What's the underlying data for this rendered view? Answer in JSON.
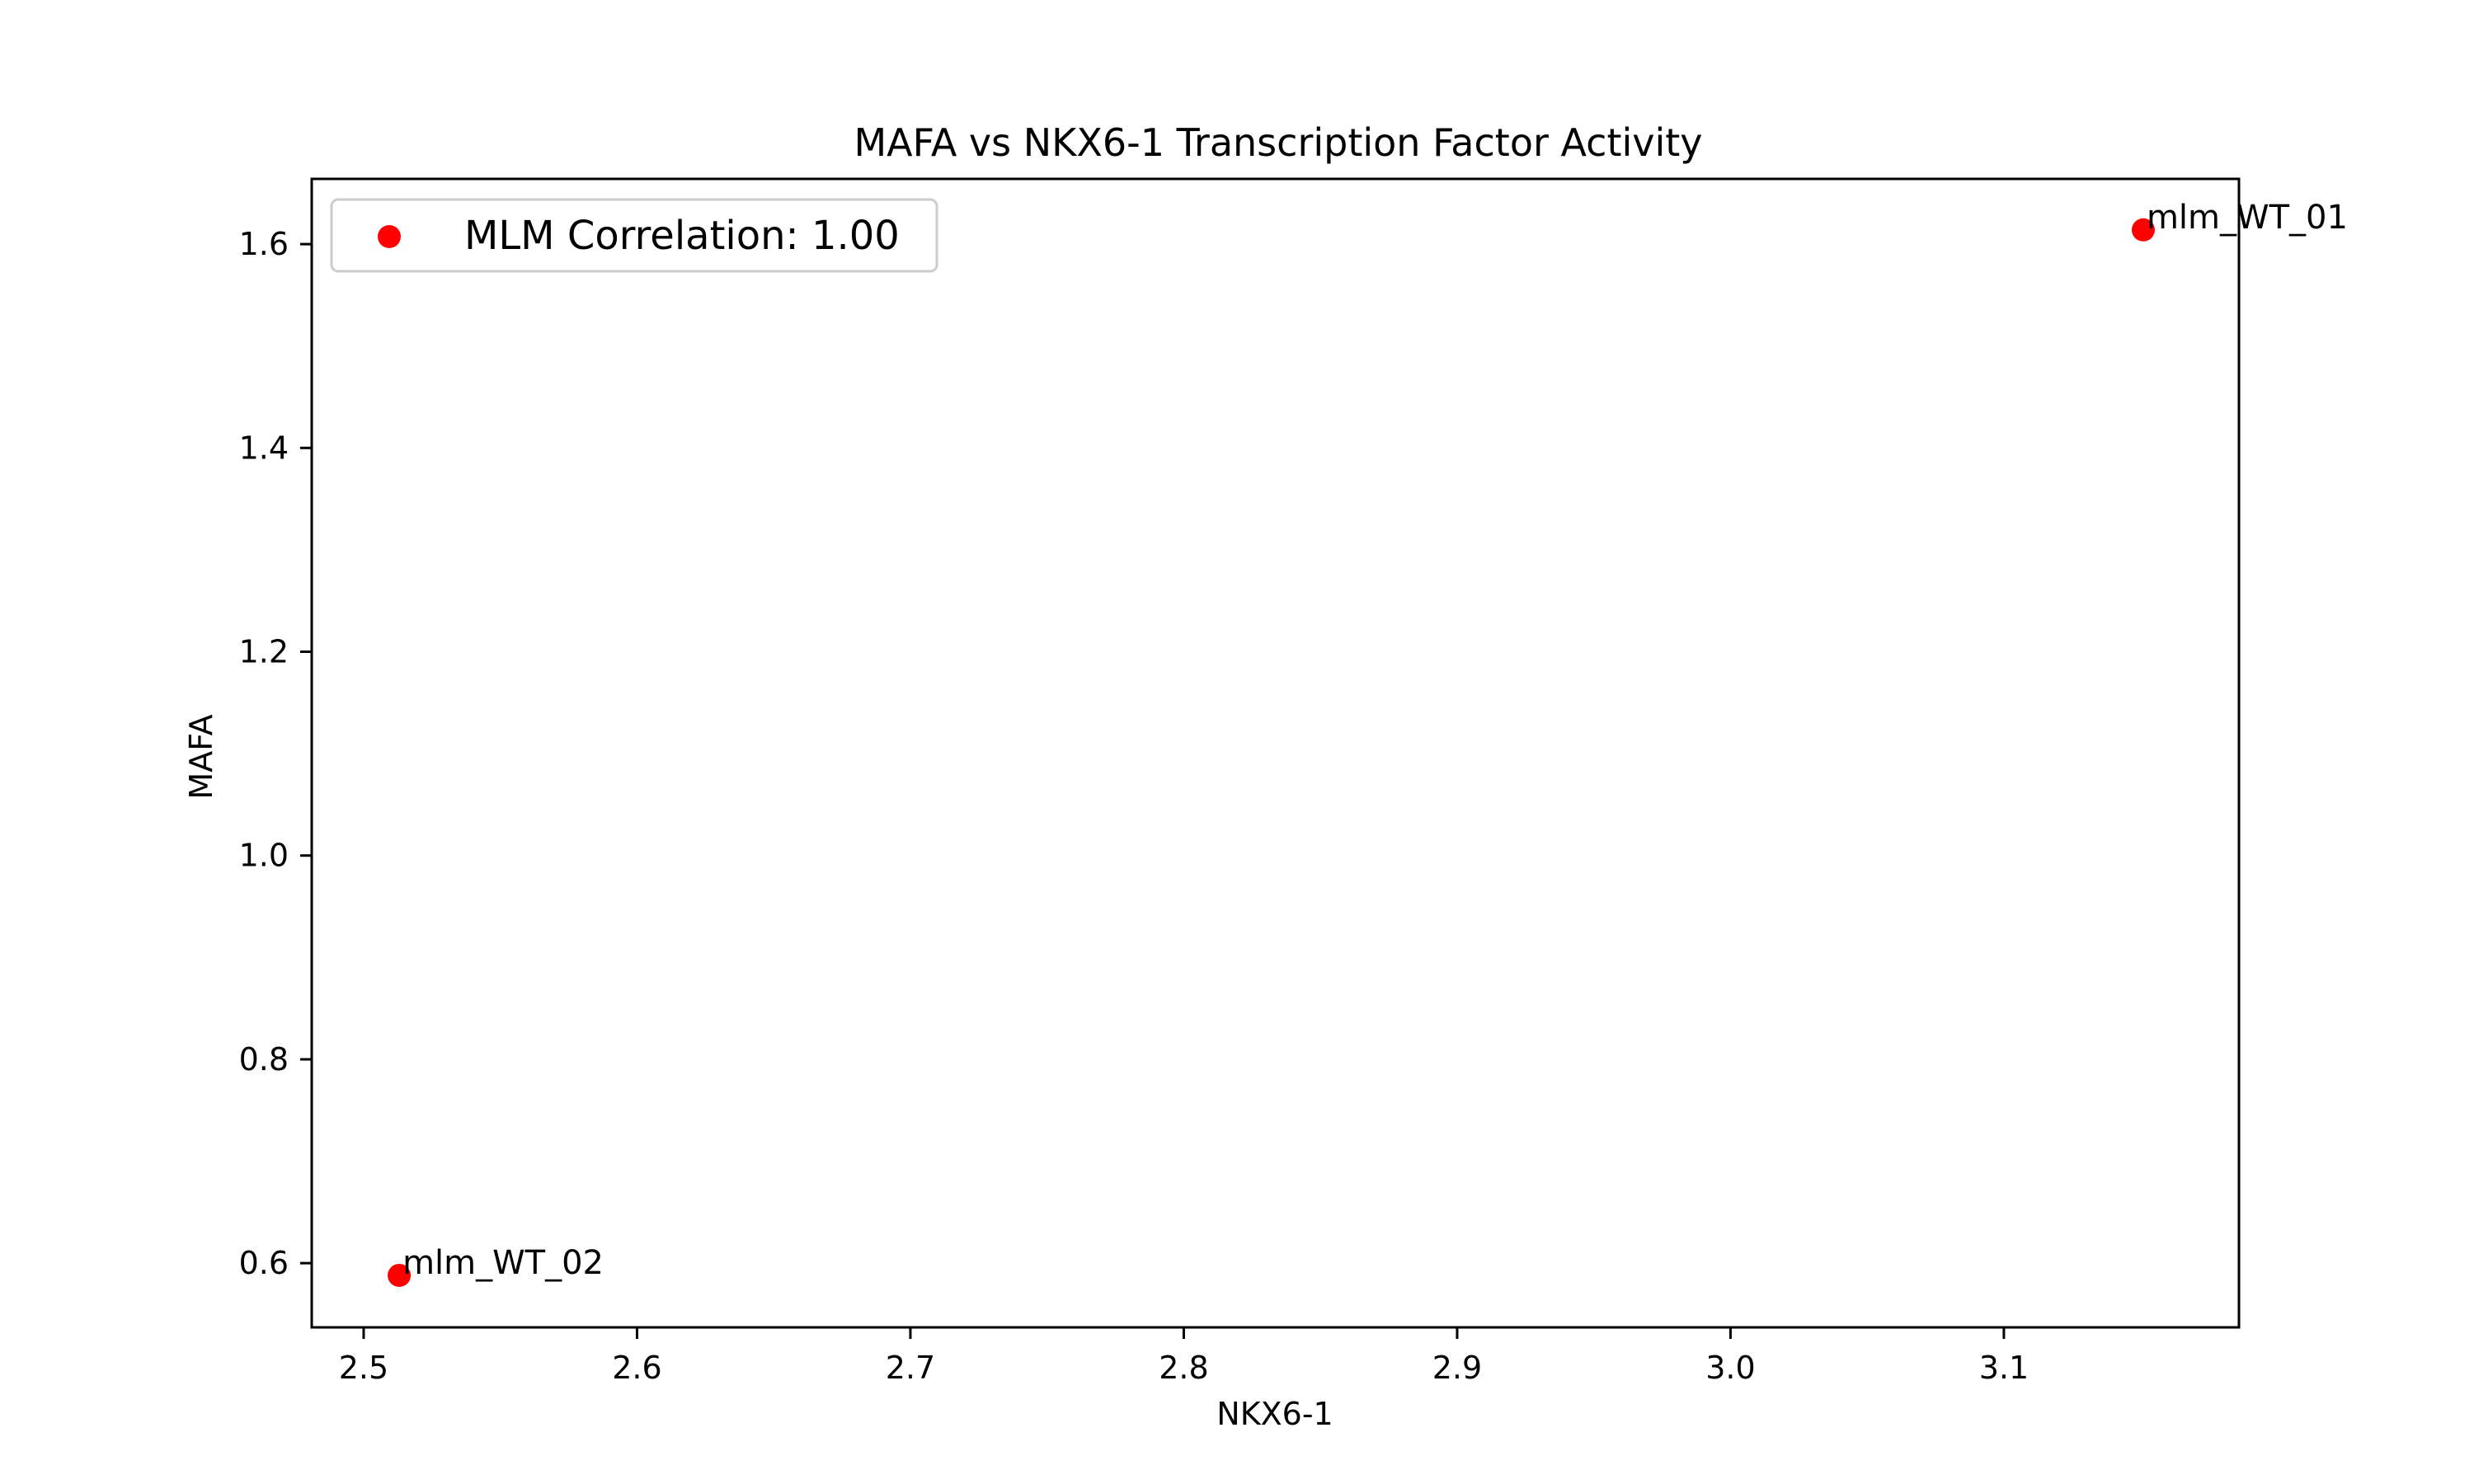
{
  "chart_data": {
    "type": "scatter",
    "title": "MAFA vs NKX6-1 Transcription Factor Activity",
    "xlabel": "NKX6-1",
    "ylabel": "MAFA",
    "xlim": [
      2.481,
      3.186
    ],
    "ylim": [
      0.537,
      1.664
    ],
    "xticks": [
      2.5,
      2.6,
      2.7,
      2.8,
      2.9,
      3.0,
      3.1
    ],
    "xtick_labels": [
      "2.5",
      "2.6",
      "2.7",
      "2.8",
      "2.9",
      "3.0",
      "3.1"
    ],
    "yticks": [
      0.6,
      0.8,
      1.0,
      1.2,
      1.4,
      1.6
    ],
    "ytick_labels": [
      "0.6",
      "0.8",
      "1.0",
      "1.2",
      "1.4",
      "1.6"
    ],
    "grid": false,
    "legend_position": "top-left",
    "series": [
      {
        "name": "MLM Correlation: 1.00",
        "color": "#ff0000",
        "points": [
          {
            "x": 3.151,
            "y": 1.614,
            "label": "mlm_WT_01"
          },
          {
            "x": 2.513,
            "y": 0.588,
            "label": "mlm_WT_02"
          }
        ]
      }
    ]
  }
}
